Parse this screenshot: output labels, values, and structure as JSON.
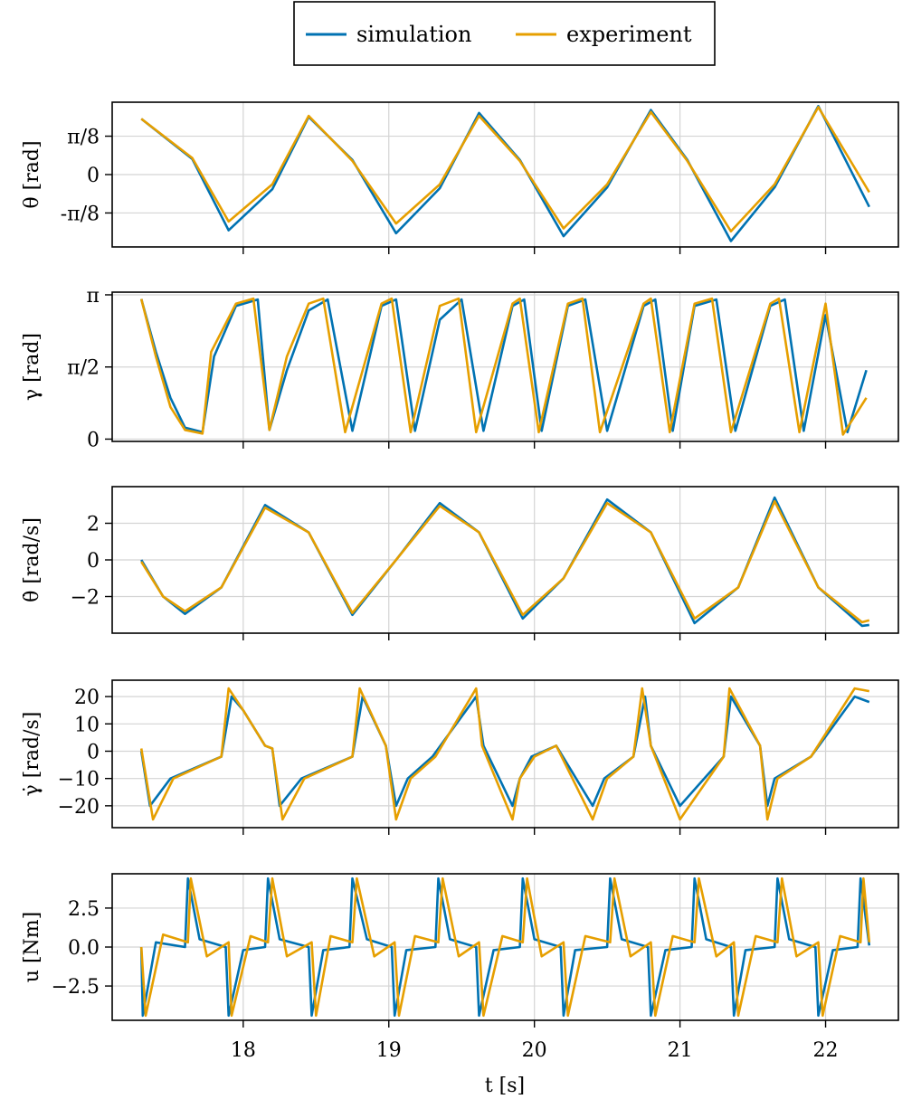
{
  "colors": {
    "simulation": "#0072b2",
    "experiment": "#e69f00"
  },
  "legend": {
    "placement": "top-center",
    "entries": [
      {
        "key": "simulation",
        "label": "simulation"
      },
      {
        "key": "experiment",
        "label": "experiment"
      }
    ]
  },
  "xaxis": {
    "label": "t [s]",
    "range": [
      17.1,
      22.5
    ],
    "ticks": [
      18,
      19,
      20,
      21,
      22
    ],
    "tick_labels": [
      "18",
      "19",
      "20",
      "21",
      "22"
    ]
  },
  "chart_data": [
    {
      "type": "line",
      "id": "theta",
      "ylabel": "θ [rad]",
      "ylim": [
        -0.74,
        0.74
      ],
      "grid": true,
      "yticks": [
        -0.3927,
        0,
        0.3927
      ],
      "ytick_labels": [
        "-π/8",
        "0",
        "π/8"
      ],
      "series": [
        {
          "name": "simulation",
          "x": [
            17.3,
            17.65,
            17.9,
            18.2,
            18.45,
            18.75,
            19.05,
            19.35,
            19.62,
            19.9,
            20.2,
            20.5,
            20.8,
            21.05,
            21.35,
            21.65,
            21.95,
            22.3
          ],
          "y": [
            0.57,
            0.16,
            -0.57,
            -0.15,
            0.59,
            0.15,
            -0.6,
            -0.14,
            0.63,
            0.15,
            -0.63,
            -0.13,
            0.66,
            0.15,
            -0.68,
            -0.13,
            0.7,
            -0.33
          ]
        },
        {
          "name": "experiment",
          "x": [
            17.3,
            17.65,
            17.9,
            18.2,
            18.45,
            18.75,
            19.05,
            19.35,
            19.62,
            19.9,
            20.2,
            20.5,
            20.8,
            21.05,
            21.35,
            21.65,
            21.95,
            22.3
          ],
          "y": [
            0.57,
            0.17,
            -0.48,
            -0.1,
            0.6,
            0.14,
            -0.5,
            -0.1,
            0.6,
            0.14,
            -0.55,
            -0.1,
            0.64,
            0.14,
            -0.58,
            -0.1,
            0.69,
            -0.18
          ]
        }
      ]
    },
    {
      "type": "line",
      "id": "gamma",
      "ylabel": "γ [rad]",
      "ylim": [
        -0.05,
        3.2
      ],
      "grid": true,
      "yticks": [
        0,
        1.5708,
        3.1416
      ],
      "ytick_labels": [
        "0",
        "π/2",
        "π"
      ],
      "series": [
        {
          "name": "simulation",
          "x": [
            17.3,
            17.4,
            17.5,
            17.6,
            17.72,
            17.8,
            17.95,
            18.1,
            18.18,
            18.3,
            18.45,
            18.58,
            18.75,
            18.95,
            19.05,
            19.18,
            19.35,
            19.5,
            19.65,
            19.85,
            19.93,
            20.05,
            20.23,
            20.35,
            20.5,
            20.75,
            20.83,
            20.95,
            21.1,
            21.25,
            21.38,
            21.62,
            21.72,
            21.85,
            22.0,
            22.15,
            22.28
          ],
          "y": [
            3.05,
            1.9,
            0.9,
            0.25,
            0.15,
            1.8,
            2.9,
            3.04,
            0.2,
            1.5,
            2.8,
            3.04,
            0.18,
            2.9,
            3.04,
            0.18,
            2.6,
            3.04,
            0.18,
            2.9,
            3.04,
            0.18,
            2.9,
            3.04,
            0.18,
            2.9,
            3.04,
            0.18,
            2.9,
            3.04,
            0.18,
            2.9,
            3.04,
            0.18,
            2.7,
            0.15,
            1.5
          ]
        },
        {
          "name": "experiment",
          "x": [
            17.3,
            17.4,
            17.5,
            17.6,
            17.72,
            17.78,
            17.95,
            18.07,
            18.18,
            18.3,
            18.45,
            18.55,
            18.7,
            18.95,
            19.02,
            19.15,
            19.35,
            19.48,
            19.6,
            19.85,
            19.9,
            20.03,
            20.23,
            20.33,
            20.45,
            20.75,
            20.8,
            20.93,
            21.1,
            21.22,
            21.35,
            21.62,
            21.68,
            21.82,
            22.0,
            22.12,
            22.28
          ],
          "y": [
            3.05,
            1.8,
            0.7,
            0.2,
            0.12,
            1.9,
            2.95,
            3.06,
            0.2,
            1.8,
            2.95,
            3.06,
            0.15,
            2.95,
            3.06,
            0.15,
            2.9,
            3.06,
            0.15,
            2.95,
            3.06,
            0.15,
            2.95,
            3.06,
            0.15,
            2.95,
            3.06,
            0.15,
            2.95,
            3.06,
            0.15,
            2.95,
            3.06,
            0.15,
            2.95,
            0.1,
            0.9
          ]
        }
      ]
    },
    {
      "type": "line",
      "id": "theta-dot",
      "ylabel": "θ̇ [rad/s]",
      "ylim": [
        -4.0,
        4.0
      ],
      "grid": true,
      "yticks": [
        -2,
        0,
        2
      ],
      "ytick_labels": [
        "−2",
        "0",
        "2"
      ],
      "series": [
        {
          "name": "simulation",
          "x": [
            17.3,
            17.45,
            17.6,
            17.85,
            18.15,
            18.45,
            18.75,
            19.05,
            19.35,
            19.62,
            19.92,
            20.2,
            20.5,
            20.8,
            21.1,
            21.4,
            21.65,
            21.95,
            22.25,
            22.3
          ],
          "y": [
            0.0,
            -2.0,
            -2.95,
            -1.5,
            3.0,
            1.5,
            -3.0,
            0.0,
            3.1,
            1.5,
            -3.2,
            -1.0,
            3.3,
            1.5,
            -3.45,
            -1.5,
            3.4,
            -1.5,
            -3.6,
            -3.55
          ]
        },
        {
          "name": "experiment",
          "x": [
            17.3,
            17.45,
            17.6,
            17.85,
            18.15,
            18.45,
            18.75,
            19.05,
            19.35,
            19.62,
            19.92,
            20.2,
            20.5,
            20.8,
            21.1,
            21.4,
            21.65,
            21.95,
            22.25,
            22.3
          ],
          "y": [
            -0.1,
            -2.0,
            -2.8,
            -1.5,
            2.85,
            1.5,
            -2.9,
            0.0,
            2.95,
            1.5,
            -3.0,
            -1.0,
            3.1,
            1.5,
            -3.2,
            -1.5,
            3.2,
            -1.5,
            -3.4,
            -3.3
          ]
        }
      ]
    },
    {
      "type": "line",
      "id": "gamma-dot",
      "ylabel": "γ̇ [rad/s]",
      "ylim": [
        -28,
        26
      ],
      "grid": true,
      "yticks": [
        -20,
        -10,
        0,
        10,
        20
      ],
      "ytick_labels": [
        "−20",
        "−10",
        "0",
        "10",
        "20"
      ],
      "series": [
        {
          "name": "simulation",
          "x": [
            17.3,
            17.36,
            17.5,
            17.85,
            17.92,
            18.0,
            18.15,
            18.2,
            18.25,
            18.4,
            18.75,
            18.82,
            18.98,
            19.05,
            19.13,
            19.3,
            19.6,
            19.65,
            19.85,
            19.9,
            19.98,
            20.15,
            20.4,
            20.48,
            20.68,
            20.76,
            20.8,
            21.0,
            21.3,
            21.35,
            21.55,
            21.6,
            21.65,
            21.9,
            22.2,
            22.3
          ],
          "y": [
            0,
            -20,
            -10,
            -2,
            20,
            15,
            2,
            1,
            -20,
            -10,
            -2,
            20,
            2,
            -20,
            -10,
            -2,
            20,
            2,
            -20,
            -10,
            -2,
            2,
            -20,
            -10,
            -2,
            20,
            2,
            -20,
            -2,
            20,
            2,
            -20,
            -10,
            -2,
            20,
            18
          ]
        },
        {
          "name": "experiment",
          "x": [
            17.3,
            17.38,
            17.52,
            17.85,
            17.9,
            18.0,
            18.15,
            18.2,
            18.27,
            18.42,
            18.75,
            18.8,
            18.98,
            19.05,
            19.15,
            19.32,
            19.6,
            19.64,
            19.85,
            19.9,
            20.0,
            20.15,
            20.4,
            20.5,
            20.68,
            20.74,
            20.8,
            21.0,
            21.3,
            21.34,
            21.55,
            21.6,
            21.67,
            21.9,
            22.2,
            22.3
          ],
          "y": [
            1,
            -25,
            -10,
            -2,
            23,
            15,
            2,
            1,
            -25,
            -10,
            -2,
            23,
            2,
            -25,
            -10,
            -2,
            23,
            2,
            -25,
            -10,
            -2,
            2,
            -25,
            -10,
            -2,
            23,
            2,
            -25,
            -2,
            23,
            2,
            -25,
            -10,
            -2,
            23,
            22
          ]
        }
      ]
    },
    {
      "type": "line",
      "id": "u",
      "ylabel": "u [Nm]",
      "ylim": [
        -4.7,
        4.7
      ],
      "grid": true,
      "yticks": [
        -2.5,
        0,
        2.5
      ],
      "ytick_labels": [
        "−2.5",
        "0.0",
        "2.5"
      ],
      "series": [
        {
          "name": "simulation",
          "x": [
            17.3,
            17.31,
            17.4,
            17.6,
            17.62,
            17.7,
            17.88,
            17.9,
            18.0,
            18.15,
            18.17,
            18.25,
            18.45,
            18.47,
            18.55,
            18.73,
            18.75,
            18.85,
            19.02,
            19.04,
            19.12,
            19.32,
            19.34,
            19.42,
            19.6,
            19.62,
            19.72,
            19.9,
            19.92,
            20.0,
            20.18,
            20.2,
            20.28,
            20.5,
            20.52,
            20.6,
            20.78,
            20.8,
            20.9,
            21.08,
            21.1,
            21.18,
            21.35,
            21.37,
            21.45,
            21.65,
            21.67,
            21.75,
            21.93,
            21.95,
            22.05,
            22.22,
            22.24,
            22.3
          ],
          "y": [
            0,
            -4.4,
            0.3,
            0,
            4.4,
            0.5,
            0,
            -4.4,
            -0.2,
            0,
            4.4,
            0.5,
            0,
            -4.4,
            -0.2,
            0,
            4.4,
            0.5,
            0,
            -4.4,
            -0.2,
            0,
            4.4,
            0.5,
            0,
            -4.4,
            -0.2,
            0,
            4.4,
            0.5,
            0,
            -4.4,
            -0.2,
            0,
            4.4,
            0.5,
            0,
            -4.4,
            -0.2,
            0,
            4.4,
            0.5,
            0,
            -4.4,
            -0.2,
            0,
            4.4,
            0.5,
            0,
            -4.4,
            -0.2,
            0,
            4.4,
            0.1
          ]
        },
        {
          "name": "experiment",
          "x": [
            17.3,
            17.33,
            17.45,
            17.62,
            17.64,
            17.75,
            17.9,
            17.92,
            18.05,
            18.17,
            18.2,
            18.3,
            18.47,
            18.5,
            18.6,
            18.75,
            18.78,
            18.9,
            19.04,
            19.07,
            19.18,
            19.34,
            19.37,
            19.48,
            19.62,
            19.65,
            19.78,
            19.92,
            19.95,
            20.05,
            20.2,
            20.23,
            20.35,
            20.52,
            20.55,
            20.66,
            20.8,
            20.83,
            20.95,
            21.1,
            21.13,
            21.25,
            21.37,
            21.4,
            21.52,
            21.67,
            21.7,
            21.8,
            21.95,
            21.98,
            22.1,
            22.24,
            22.26,
            22.3
          ],
          "y": [
            0,
            -4.4,
            0.8,
            0.3,
            4.4,
            -0.6,
            0.3,
            -4.4,
            0.7,
            0.3,
            4.4,
            -0.6,
            0.3,
            -4.4,
            0.7,
            0.3,
            4.4,
            -0.6,
            0.3,
            -4.4,
            0.7,
            0.3,
            4.4,
            -0.6,
            0.3,
            -4.4,
            0.7,
            0.3,
            4.4,
            -0.6,
            0.3,
            -4.4,
            0.7,
            0.3,
            4.4,
            -0.6,
            0.3,
            -4.4,
            0.7,
            0.3,
            4.4,
            -0.6,
            0.3,
            -4.4,
            0.7,
            0.3,
            4.4,
            -0.6,
            0.3,
            -4.4,
            0.7,
            0.3,
            4.4,
            0.3
          ]
        }
      ]
    }
  ]
}
